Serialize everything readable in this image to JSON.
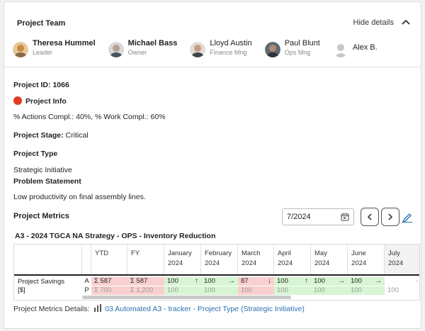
{
  "team": {
    "title": "Project Team",
    "hide_label": "Hide details",
    "members": [
      {
        "name": "Theresa Hummel",
        "role": "Leader",
        "bold": true,
        "avatar_color": "#c98b3e"
      },
      {
        "name": "Michael Bass",
        "role": "Owner",
        "bold": true,
        "avatar_color": "#7a8593"
      },
      {
        "name": "Lloyd Austin",
        "role": "Finance Mng",
        "bold": false,
        "avatar_color": "#a0766a"
      },
      {
        "name": "Paul Blunt",
        "role": "Ops Mng",
        "bold": false,
        "avatar_color": "#5e6a74"
      },
      {
        "name": "Alex B.",
        "role": "",
        "bold": false,
        "avatar_color": "#c8c8c8"
      }
    ]
  },
  "project": {
    "id_label": "Project ID:",
    "id_value": "1066",
    "info_label": "Project Info",
    "completion": "% Actions Compl.: 40%, % Work Compl.: 60%",
    "stage_label": "Project Stage:",
    "stage_value": "Critical",
    "type_label": "Project Type",
    "type_value": "Strategic Initiative",
    "problem_label": "Problem Statement",
    "problem_value": "Low productivity on final assembly lines.",
    "status_color": "#e03b24"
  },
  "metrics": {
    "title": "Project Metrics",
    "date": "7/2024",
    "strategy": "A3 - 2024 TGCA NA Strategy - OPS - Inventory Reduction",
    "headers": {
      "ytd": "YTD",
      "fy": "FY",
      "m1": [
        "January",
        "2024"
      ],
      "m2": [
        "February",
        "2024"
      ],
      "m3": [
        "March",
        "2024"
      ],
      "m4": [
        "April",
        "2024"
      ],
      "m5": [
        "May",
        "2024"
      ],
      "m6": [
        "June",
        "2024"
      ],
      "m7": [
        "July",
        "2024"
      ]
    },
    "row_label": [
      "Project Savings",
      "[$]"
    ],
    "a_label": "A",
    "p_label": "P",
    "actual": {
      "ytd": "Σ 587",
      "fy": "Σ 587",
      "m1": "100",
      "m2": "100",
      "m3": "87",
      "m4": "100",
      "m5": "100",
      "m6": "100",
      "m7": "-"
    },
    "planned": {
      "ytd": "Σ 700",
      "fy": "Σ 1,200",
      "m1": "100",
      "m2": "100",
      "m3": "100",
      "m4": "100",
      "m5": "100",
      "m6": "100",
      "m7": "100"
    },
    "arrows": {
      "m1": "↑",
      "m2": "→",
      "m3": "↓",
      "m4": "↑",
      "m5": "→",
      "m6": "→"
    },
    "details_label": "Project Metrics Details:",
    "details_link": "03 Automated A3 - tracker - Project Type (Strategic Initiative)"
  },
  "icons": {
    "chevron": "chevron-up-icon",
    "calendar": "calendar-icon",
    "prev": "chevron-left-icon",
    "next": "chevron-right-icon",
    "edit": "pencil-icon",
    "chart": "bar-chart-icon"
  }
}
